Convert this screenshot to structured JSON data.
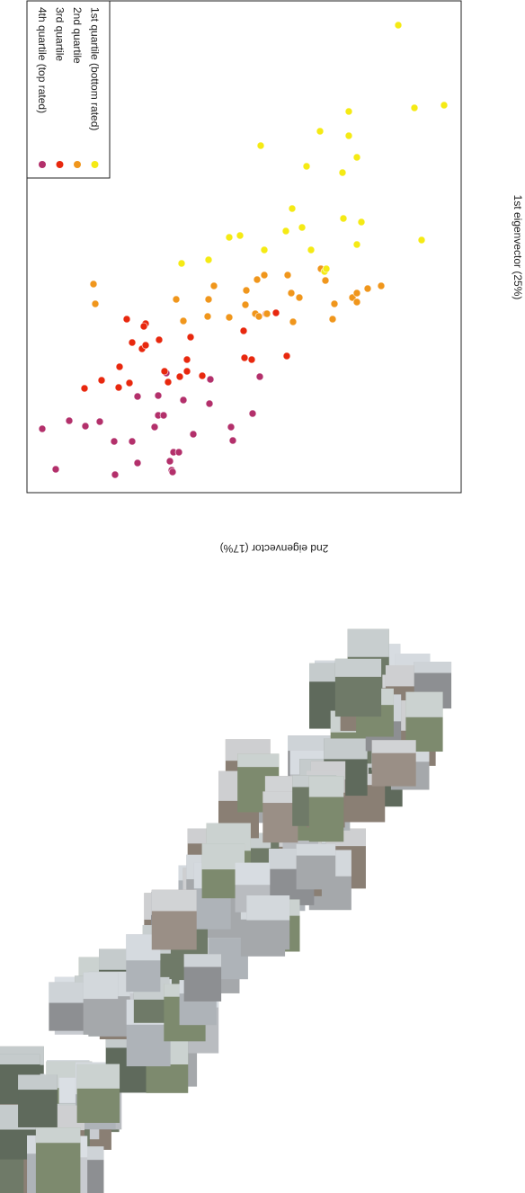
{
  "chart_data": {
    "type": "scatter",
    "x_label": "2nd eigenvector (17%)",
    "y_label": "1st eigenvector (25%)",
    "xlim": [
      0,
      483
    ],
    "ylim": [
      0,
      548
    ],
    "legend": "top-left",
    "series": [
      {
        "name": "4th quartile (top rated)",
        "color": "#b3306b",
        "x": [
          17,
          32,
          47,
          65,
          81,
          97,
          98,
          117,
          123,
          123,
          142,
          146,
          152,
          159,
          161,
          163,
          169,
          185,
          146,
          155,
          174,
          203,
          204,
          227,
          229,
          251,
          259,
          162
        ],
        "values": [
          71,
          26,
          80,
          74,
          79,
          57,
          20,
          57,
          33,
          107,
          73,
          86,
          86,
          35,
          25,
          45,
          45,
          65,
          108,
          133,
          103,
          99,
          126,
          73,
          58,
          88,
          129,
          23
        ]
      },
      {
        "name": "3rd quartile",
        "color": "#e8280e",
        "x": [
          64,
          83,
          102,
          103,
          114,
          111,
          117,
          128,
          132,
          147,
          132,
          130,
          153,
          157,
          170,
          178,
          195,
          182,
          178,
          242,
          241,
          250,
          266,
          277,
          289
        ],
        "values": [
          116,
          125,
          117,
          140,
          122,
          193,
          167,
          160,
          164,
          170,
          188,
          185,
          135,
          123,
          129,
          135,
          130,
          173,
          148,
          150,
          180,
          148,
          199,
          200,
          152
        ]
      },
      {
        "name": "2nd quartile",
        "color": "#f0961c",
        "x": [
          74,
          76,
          166,
          174,
          201,
          202,
          208,
          225,
          243,
          244,
          254,
          256,
          267,
          258,
          264,
          290,
          296,
          303,
          294,
          327,
          340,
          332,
          362,
          367,
          367,
          379,
          394,
          342
        ],
        "values": [
          232,
          210,
          215,
          191,
          196,
          215,
          230,
          195,
          209,
          225,
          199,
          237,
          199,
          196,
          242,
          242,
          190,
          217,
          222,
          249,
          193,
          236,
          217,
          222,
          212,
          227,
          230,
          210
        ]
      },
      {
        "name": "1st quartile (bottom rated)",
        "color": "#f5ea14",
        "x": [
          172,
          202,
          225,
          237,
          260,
          264,
          288,
          295,
          306,
          311,
          316,
          326,
          331,
          333,
          352,
          351,
          358,
          358,
          367,
          367,
          372,
          439,
          413,
          431,
          464
        ],
        "values": [
          255,
          259,
          284,
          286,
          386,
          270,
          291,
          316,
          295,
          363,
          270,
          402,
          246,
          249,
          305,
          356,
          424,
          397,
          373,
          276,
          301,
          281,
          520,
          428,
          431
        ]
      }
    ]
  }
}
